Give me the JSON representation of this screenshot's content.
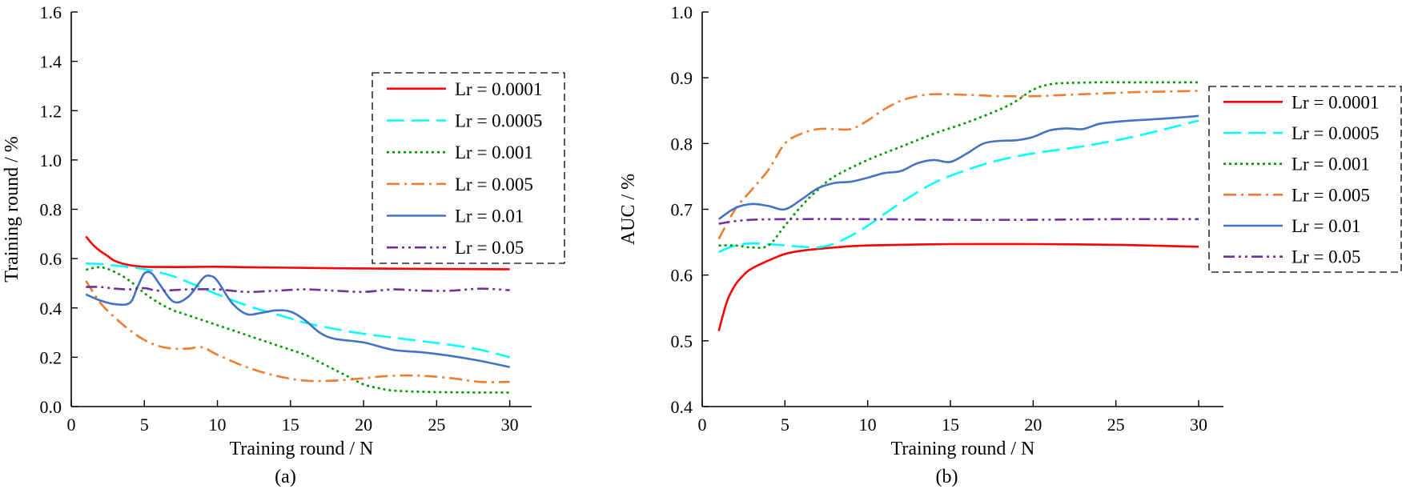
{
  "chart_data": [
    {
      "type": "line",
      "subtitle": "(a)",
      "xlabel": "Training round / N",
      "ylabel": "Training round / %",
      "xlim": [
        0,
        31.5
      ],
      "ylim": [
        0,
        1.6
      ],
      "xticks": [
        0,
        5,
        10,
        15,
        20,
        25,
        30
      ],
      "yticks": [
        0.0,
        0.2,
        0.4,
        0.6,
        0.8,
        1.0,
        1.2,
        1.4,
        1.6
      ],
      "legend_position": "top-right",
      "series": [
        {
          "name": "Lr = 0.0001",
          "color": "#ff0000",
          "dash": "solid",
          "x": [
            1,
            1.5,
            2,
            2.5,
            3,
            4,
            5,
            6,
            8,
            10,
            12,
            15,
            20,
            25,
            30
          ],
          "y": [
            0.69,
            0.655,
            0.63,
            0.61,
            0.59,
            0.573,
            0.567,
            0.566,
            0.566,
            0.567,
            0.565,
            0.563,
            0.56,
            0.558,
            0.557
          ]
        },
        {
          "name": "Lr = 0.0005",
          "color": "#00ffff",
          "dash": "long-dash",
          "x": [
            1,
            2,
            3,
            4,
            5,
            6,
            7,
            8,
            9,
            10,
            12,
            14,
            16,
            18,
            20,
            22,
            24,
            26,
            28,
            30
          ],
          "y": [
            0.58,
            0.578,
            0.572,
            0.565,
            0.557,
            0.545,
            0.528,
            0.505,
            0.48,
            0.455,
            0.41,
            0.375,
            0.34,
            0.315,
            0.295,
            0.28,
            0.265,
            0.25,
            0.23,
            0.2
          ]
        },
        {
          "name": "Lr = 0.001",
          "color": "#009900",
          "dash": "dotted",
          "x": [
            1,
            2,
            3,
            4,
            5,
            6,
            7,
            8,
            10,
            12,
            14,
            16,
            17,
            18,
            19,
            20,
            21,
            22,
            24,
            26,
            28,
            30
          ],
          "y": [
            0.555,
            0.565,
            0.545,
            0.51,
            0.46,
            0.42,
            0.39,
            0.37,
            0.33,
            0.29,
            0.25,
            0.21,
            0.18,
            0.15,
            0.12,
            0.09,
            0.075,
            0.065,
            0.06,
            0.058,
            0.057,
            0.057
          ]
        },
        {
          "name": "Lr = 0.005",
          "color": "#ed7d31",
          "dash": "dash-dot",
          "x": [
            1,
            2,
            3,
            4,
            5,
            6,
            7,
            8,
            9,
            10,
            12,
            14,
            16,
            18,
            20,
            22,
            24,
            26,
            28,
            30
          ],
          "y": [
            0.51,
            0.42,
            0.36,
            0.31,
            0.27,
            0.245,
            0.235,
            0.235,
            0.24,
            0.21,
            0.16,
            0.125,
            0.105,
            0.105,
            0.115,
            0.125,
            0.125,
            0.115,
            0.1,
            0.1
          ]
        },
        {
          "name": "Lr = 0.01",
          "color": "#4472c4",
          "dash": "solid",
          "x": [
            1,
            2,
            3,
            4,
            4.5,
            5,
            5.5,
            6,
            7,
            8,
            9,
            9.5,
            10,
            11,
            12,
            13,
            14,
            15,
            16,
            17,
            18,
            20,
            22,
            24,
            26,
            28,
            30
          ],
          "y": [
            0.455,
            0.43,
            0.415,
            0.42,
            0.48,
            0.54,
            0.54,
            0.5,
            0.425,
            0.445,
            0.52,
            0.53,
            0.51,
            0.42,
            0.375,
            0.38,
            0.39,
            0.385,
            0.35,
            0.3,
            0.275,
            0.26,
            0.23,
            0.22,
            0.205,
            0.185,
            0.16
          ]
        },
        {
          "name": "Lr = 0.05",
          "color": "#7030a0",
          "dash": "dash-dot-dot",
          "x": [
            1,
            2,
            3,
            4,
            5,
            6,
            8,
            10,
            12,
            14,
            16,
            18,
            20,
            22,
            24,
            26,
            28,
            30
          ],
          "y": [
            0.485,
            0.485,
            0.478,
            0.475,
            0.48,
            0.47,
            0.475,
            0.475,
            0.465,
            0.47,
            0.475,
            0.47,
            0.465,
            0.475,
            0.47,
            0.47,
            0.478,
            0.472
          ]
        }
      ]
    },
    {
      "type": "line",
      "subtitle": "(b)",
      "xlabel": "Training round / N",
      "ylabel": "AUC / %",
      "xlim": [
        0,
        31.5
      ],
      "ylim": [
        0.4,
        1.0
      ],
      "xticks": [
        0,
        5,
        10,
        15,
        20,
        25,
        30
      ],
      "yticks": [
        0.4,
        0.5,
        0.6,
        0.7,
        0.8,
        0.9,
        1.0
      ],
      "legend_position": "right",
      "series": [
        {
          "name": "Lr = 0.0001",
          "color": "#ff0000",
          "dash": "solid",
          "x": [
            1,
            1.5,
            2,
            2.5,
            3,
            4,
            5,
            6,
            8,
            10,
            15,
            20,
            25,
            30
          ],
          "y": [
            0.515,
            0.56,
            0.585,
            0.6,
            0.61,
            0.622,
            0.632,
            0.637,
            0.642,
            0.645,
            0.647,
            0.647,
            0.646,
            0.643
          ]
        },
        {
          "name": "Lr = 0.0005",
          "color": "#00ffff",
          "dash": "long-dash",
          "x": [
            1,
            2,
            3,
            4,
            5,
            6,
            7,
            8,
            9,
            10,
            12,
            14,
            16,
            18,
            20,
            22,
            24,
            26,
            28,
            30
          ],
          "y": [
            0.635,
            0.645,
            0.648,
            0.647,
            0.645,
            0.643,
            0.642,
            0.648,
            0.66,
            0.675,
            0.71,
            0.74,
            0.76,
            0.775,
            0.785,
            0.792,
            0.8,
            0.81,
            0.822,
            0.835
          ]
        },
        {
          "name": "Lr = 0.001",
          "color": "#009900",
          "dash": "dotted",
          "x": [
            1,
            2,
            3,
            4,
            5,
            6,
            7,
            8,
            10,
            12,
            14,
            16,
            18,
            19,
            20,
            21,
            22,
            24,
            26,
            28,
            30
          ],
          "y": [
            0.645,
            0.645,
            0.642,
            0.645,
            0.675,
            0.705,
            0.73,
            0.75,
            0.775,
            0.795,
            0.815,
            0.832,
            0.852,
            0.865,
            0.882,
            0.89,
            0.892,
            0.893,
            0.893,
            0.893,
            0.893
          ]
        },
        {
          "name": "Lr = 0.005",
          "color": "#ed7d31",
          "dash": "dash-dot",
          "x": [
            1,
            2,
            3,
            4,
            5,
            6,
            7,
            8,
            9,
            10,
            11,
            12,
            13,
            14,
            16,
            18,
            20,
            22,
            24,
            26,
            28,
            30
          ],
          "y": [
            0.655,
            0.7,
            0.73,
            0.76,
            0.8,
            0.815,
            0.822,
            0.822,
            0.822,
            0.835,
            0.852,
            0.865,
            0.872,
            0.875,
            0.874,
            0.872,
            0.872,
            0.874,
            0.876,
            0.878,
            0.879,
            0.88
          ]
        },
        {
          "name": "Lr = 0.01",
          "color": "#4472c4",
          "dash": "solid",
          "x": [
            1,
            2,
            3,
            4,
            5,
            6,
            7,
            8,
            9,
            10,
            11,
            12,
            13,
            14,
            15,
            16,
            17,
            18,
            19,
            20,
            21,
            22,
            23,
            24,
            25,
            26,
            28,
            30
          ],
          "y": [
            0.685,
            0.702,
            0.708,
            0.705,
            0.7,
            0.715,
            0.732,
            0.74,
            0.742,
            0.748,
            0.755,
            0.758,
            0.77,
            0.775,
            0.772,
            0.785,
            0.8,
            0.804,
            0.805,
            0.81,
            0.82,
            0.823,
            0.822,
            0.83,
            0.833,
            0.835,
            0.838,
            0.842
          ]
        },
        {
          "name": "Lr = 0.05",
          "color": "#7030a0",
          "dash": "dash-dot-dot",
          "x": [
            1,
            2,
            3,
            5,
            10,
            15,
            20,
            25,
            30
          ],
          "y": [
            0.678,
            0.682,
            0.684,
            0.685,
            0.685,
            0.684,
            0.684,
            0.685,
            0.685
          ]
        }
      ]
    }
  ]
}
